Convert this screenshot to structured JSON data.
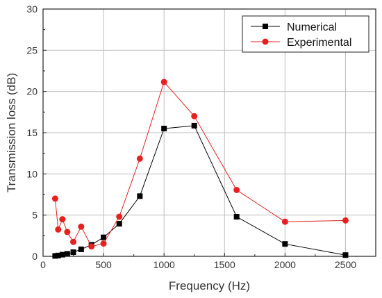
{
  "chart_data": {
    "type": "line",
    "title": "",
    "xlabel": "Frequency (Hz)",
    "ylabel": "Transmission loss (dB)",
    "xlim": [
      0,
      2750
    ],
    "ylim": [
      0,
      30
    ],
    "xticks": [
      0,
      500,
      1000,
      1500,
      2000,
      2500
    ],
    "yticks": [
      0,
      5,
      10,
      15,
      20,
      25,
      30
    ],
    "grid": true,
    "legend_position": "top-right",
    "series": [
      {
        "name": "Numerical",
        "color": "#000000",
        "marker": "square",
        "x": [
          100,
          125,
          160,
          200,
          250,
          315,
          400,
          500,
          630,
          800,
          1000,
          1250,
          1600,
          2000,
          2500
        ],
        "y": [
          0.05,
          0.1,
          0.2,
          0.3,
          0.5,
          0.85,
          1.4,
          2.3,
          3.95,
          7.3,
          15.5,
          15.85,
          4.8,
          1.5,
          0.15
        ]
      },
      {
        "name": "Experimental",
        "color": "#e8201f",
        "marker": "circle",
        "x": [
          100,
          125,
          160,
          200,
          250,
          315,
          400,
          500,
          630,
          800,
          1000,
          1250,
          1600,
          2000,
          2500
        ],
        "y": [
          7.0,
          3.25,
          4.5,
          2.95,
          1.75,
          3.6,
          1.2,
          1.55,
          4.8,
          11.85,
          21.15,
          17.0,
          8.05,
          4.2,
          4.35
        ]
      }
    ]
  }
}
